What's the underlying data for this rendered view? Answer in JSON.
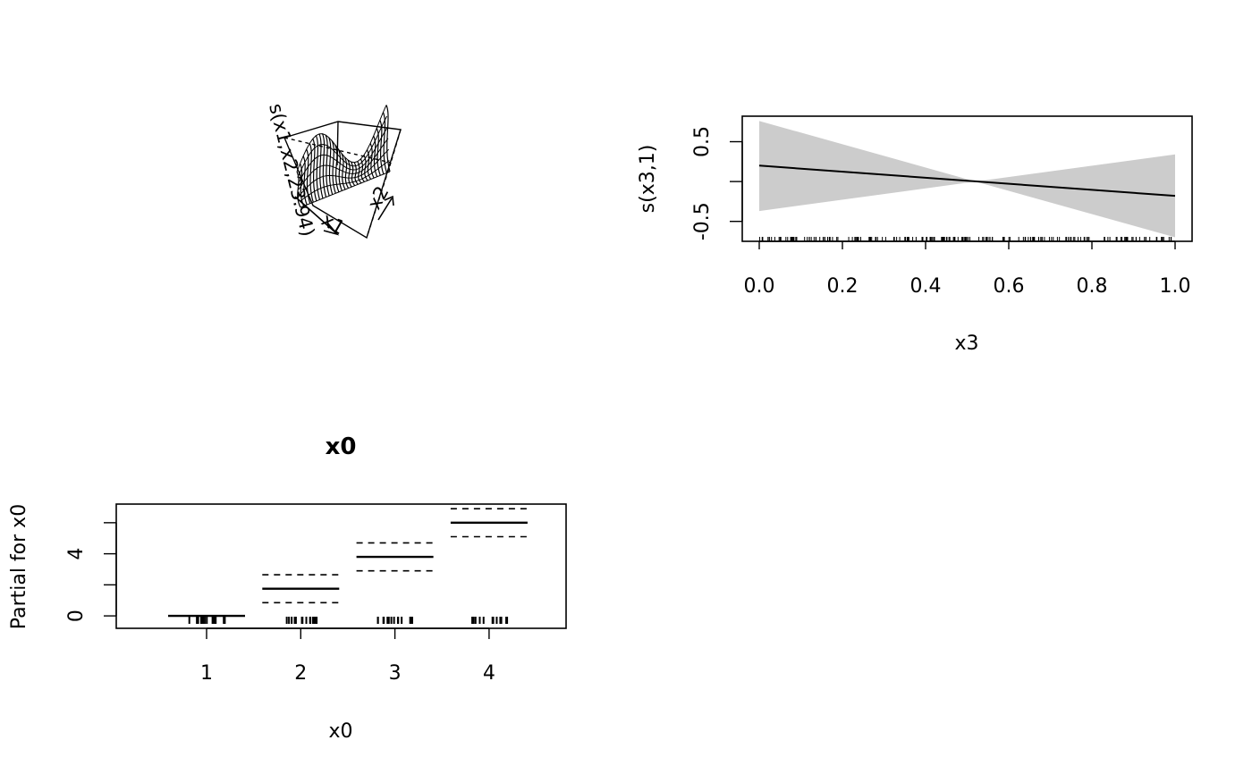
{
  "chart_data": [
    {
      "type": "surface",
      "z_axis_label": "s(x1,x2,23.94)",
      "x_axis_label": "x1",
      "y_axis_label": "x2"
    },
    {
      "type": "line",
      "xlabel": "x3",
      "ylabel": "s(x3,1)",
      "xlim": [
        0,
        1
      ],
      "ylim": [
        -0.75,
        0.82
      ],
      "x_ticks": [
        "0.0",
        "0.2",
        "0.4",
        "0.6",
        "0.8",
        "1.0"
      ],
      "y_ticks": [
        "-0.5",
        "0.5"
      ],
      "fit": {
        "x": [
          0,
          1
        ],
        "y": [
          0.2,
          -0.18
        ]
      },
      "band_upper": {
        "x": [
          0,
          0.52,
          1
        ],
        "y": [
          0.76,
          0.0,
          0.34
        ]
      },
      "band_lower": {
        "x": [
          0,
          0.52,
          1
        ],
        "y": [
          -0.37,
          0.0,
          -0.7
        ]
      },
      "band_color": "#cccccc"
    },
    {
      "type": "step",
      "title": "x0",
      "xlabel": "x0",
      "ylabel": "Partial for x0",
      "categories": [
        "1",
        "2",
        "3",
        "4"
      ],
      "y_ticks": [
        "0",
        "4"
      ],
      "ylim": [
        -0.8,
        7.2
      ],
      "estimates": [
        0,
        1.75,
        3.8,
        6.0
      ],
      "upper": [
        0,
        2.65,
        4.7,
        6.9
      ],
      "lower": [
        0,
        0.85,
        2.9,
        5.1
      ]
    }
  ]
}
